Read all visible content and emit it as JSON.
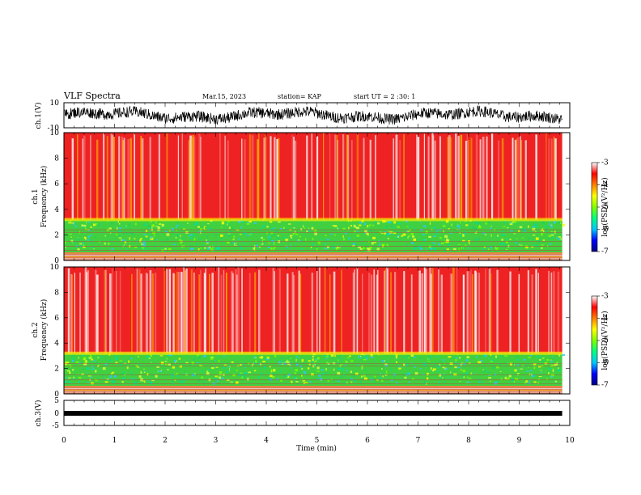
{
  "header": {
    "title": "VLF Spectra",
    "date": "Mar.15, 2023",
    "station": "station= KAP",
    "start": "start  UT =   2  :30: 1"
  },
  "colors": {
    "colorbar_stops": [
      "#000080",
      "#0000ff",
      "#00c8ff",
      "#00ff80",
      "#80ff00",
      "#ffff00",
      "#ff8000",
      "#ff0000",
      "#ffffff"
    ],
    "waveform": "#000000",
    "spectrogram_low": "#40d040",
    "spectrogram_high": "#ee2222"
  },
  "chart_data": [
    {
      "type": "line",
      "name": "channel-1-waveform",
      "ylabel": "ch.1(V)",
      "ylim": [
        -10,
        10
      ],
      "yticks": [
        10,
        -10
      ],
      "xlim": [
        0,
        10
      ],
      "data_end_min": 9.85
    },
    {
      "type": "heatmap",
      "name": "channel-1-spectrogram",
      "ylabel_top": "ch.1",
      "ylabel": "Frequency (kHz)",
      "ylim": [
        0,
        10
      ],
      "yticks": [
        0,
        2,
        4,
        6,
        8,
        10
      ],
      "xlim": [
        0,
        10
      ],
      "data_end_min": 9.85,
      "low_band_upper_khz": 3.2,
      "colorbar": {
        "label": "log(PSD)(V²/Hz)",
        "range": [
          -7,
          -3
        ],
        "ticks": [
          "-3",
          "-4",
          "-5",
          "-6",
          "-7"
        ]
      }
    },
    {
      "type": "heatmap",
      "name": "channel-2-spectrogram",
      "ylabel_top": "ch.2",
      "ylabel": "Frequency (kHz)",
      "ylim": [
        0,
        10
      ],
      "yticks": [
        0,
        2,
        4,
        6,
        8,
        10
      ],
      "xlim": [
        0,
        10
      ],
      "data_end_min": 9.85,
      "low_band_upper_khz": 3.2,
      "colorbar": {
        "label": "log(PSD)(V²/Hz)",
        "range": [
          -7,
          -3
        ],
        "ticks": [
          "-3",
          "-4",
          "-5",
          "-6",
          "-7"
        ]
      }
    },
    {
      "type": "line",
      "name": "channel-3-waveform",
      "ylabel": "ch.3(V)",
      "ylim": [
        -5,
        5
      ],
      "yticks": [
        5,
        0,
        -5
      ],
      "xlim": [
        0,
        10
      ],
      "data_end_min": 9.85
    }
  ],
  "xaxis": {
    "label": "Time (min)",
    "ticks": [
      "0",
      "1",
      "2",
      "3",
      "4",
      "5",
      "6",
      "7",
      "8",
      "9",
      "10"
    ]
  }
}
